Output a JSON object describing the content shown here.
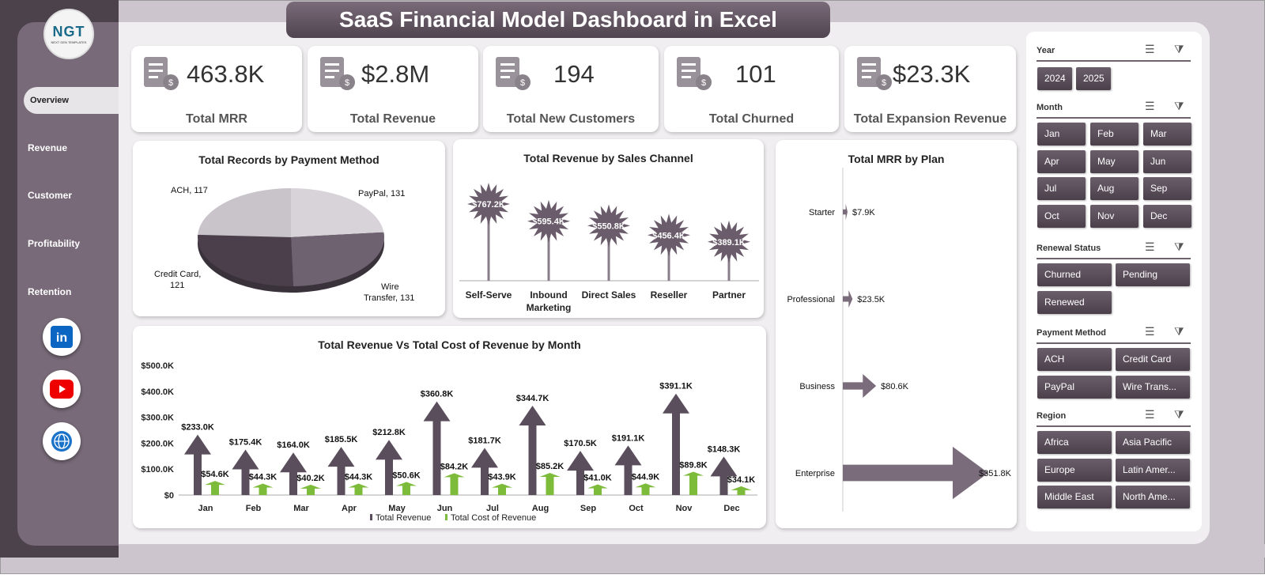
{
  "title": "SaaS Financial Model Dashboard in Excel",
  "logo": {
    "text": "NGT",
    "sub": "NEXT GEN TEMPLATES"
  },
  "nav": [
    "Overview",
    "Revenue",
    "Customer",
    "Profitability",
    "Retention"
  ],
  "nav_active": "Overview",
  "social": [
    "linkedin-icon",
    "youtube-icon",
    "globe-icon"
  ],
  "kpis": [
    {
      "value": "463.8K",
      "label": "Total MRR",
      "icon": "clipboard-calculator-icon"
    },
    {
      "value": "$2.8M",
      "label": "Total Revenue",
      "icon": "revenue-chart-icon"
    },
    {
      "value": "194",
      "label": "Total New Customers",
      "icon": "handshake-icon"
    },
    {
      "value": "101",
      "label": "Total Churned",
      "icon": "churn-chart-icon"
    },
    {
      "value": "$23.3K",
      "label": "Total Expansion Revenue",
      "icon": "coins-growth-icon"
    }
  ],
  "chart_data": [
    {
      "type": "pie",
      "title": "Total Records by Payment Method",
      "categories": [
        "ACH",
        "PayPal",
        "Wire Transfer",
        "Credit Card"
      ],
      "values": [
        117,
        131,
        131,
        121
      ],
      "labels": [
        "ACH, 117",
        "PayPal, 131",
        "Wire Transfer, 131",
        "Credit Card, 121"
      ],
      "colors": [
        "#d8d3d9",
        "#6e6170",
        "#4a3f4b",
        "#c9c4ca"
      ]
    },
    {
      "type": "bar",
      "title": "Total Revenue  by Sales Channel",
      "categories": [
        "Self-Serve",
        "Inbound Marketing",
        "Direct Sales",
        "Reseller",
        "Partner"
      ],
      "values": [
        767.2,
        595.4,
        550.8,
        456.4,
        389.1
      ],
      "labels": [
        "$767.2K",
        "$595.4K",
        "$550.8K",
        "$456.4K",
        "$389.1K"
      ]
    },
    {
      "type": "bar",
      "orientation": "horizontal",
      "title": "Total MRR by Plan",
      "categories": [
        "Starter",
        "Professional",
        "Business",
        "Enterprise"
      ],
      "values": [
        7.9,
        23.5,
        80.6,
        351.8
      ],
      "labels": [
        "$7.9K",
        "$23.5K",
        "$80.6K",
        "$351.8K"
      ]
    },
    {
      "type": "bar",
      "title": "Total Revenue Vs Total Cost of Revenue  by Month",
      "categories": [
        "Jan",
        "Feb",
        "Mar",
        "Apr",
        "May",
        "Jun",
        "Jul",
        "Aug",
        "Sep",
        "Oct",
        "Nov",
        "Dec"
      ],
      "series": [
        {
          "name": "Total Revenue",
          "values": [
            233.0,
            175.4,
            164.0,
            185.5,
            212.8,
            360.8,
            181.7,
            344.7,
            170.5,
            191.1,
            391.1,
            148.3
          ],
          "labels": [
            "$233.0K",
            "$175.4K",
            "$164.0K",
            "$185.5K",
            "$212.8K",
            "$360.8K",
            "$181.7K",
            "$344.7K",
            "$170.5K",
            "$191.1K",
            "$391.1K",
            "$148.3K"
          ],
          "color": "#5a4d5c"
        },
        {
          "name": "Total Cost of Revenue",
          "values": [
            54.6,
            44.3,
            40.2,
            44.3,
            50.6,
            84.2,
            43.9,
            85.2,
            41.0,
            44.9,
            89.8,
            34.1
          ],
          "labels": [
            "$54.6K",
            "$44.3K",
            "$40.2K",
            "$44.3K",
            "$50.6K",
            "$84.2K",
            "$43.9K",
            "$85.2K",
            "$41.0K",
            "$44.9K",
            "$89.8K",
            "$34.1K"
          ],
          "color": "#7dbb3a"
        }
      ],
      "ylim": [
        0,
        500
      ],
      "yticks": [
        "$0",
        "$100.0K",
        "$200.0K",
        "$300.0K",
        "$400.0K",
        "$500.0K"
      ],
      "legend": "bottom"
    }
  ],
  "slicers": [
    {
      "title": "Year",
      "items": [
        "2024",
        "2025"
      ]
    },
    {
      "title": "Month",
      "items": [
        "Jan",
        "Feb",
        "Mar",
        "Apr",
        "May",
        "Jun",
        "Jul",
        "Aug",
        "Sep",
        "Oct",
        "Nov",
        "Dec"
      ]
    },
    {
      "title": "Renewal Status",
      "items": [
        "Churned",
        "Pending",
        "Renewed"
      ]
    },
    {
      "title": "Payment Method",
      "items": [
        "ACH",
        "Credit Card",
        "PayPal",
        "Wire Trans..."
      ]
    },
    {
      "title": "Region",
      "items": [
        "Africa",
        "Asia Pacific",
        "Europe",
        "Latin Amer...",
        "Middle East",
        "North Ame..."
      ]
    }
  ]
}
